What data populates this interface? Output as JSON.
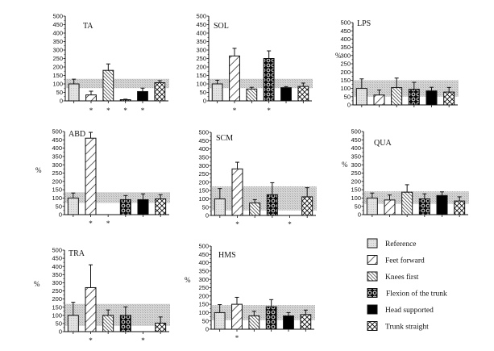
{
  "chart_data": [
    {
      "type": "bar",
      "title": "TA",
      "ylabel": "",
      "ylim": [
        0,
        500
      ],
      "yticks": [
        0,
        50,
        100,
        150,
        200,
        250,
        300,
        350,
        400,
        450,
        500
      ],
      "categories": [
        "Reference",
        "Feet forward",
        "Knees first",
        "Flexion of the trunk",
        "Head supported",
        "Trunk straight"
      ],
      "values": [
        100,
        35,
        180,
        7,
        55,
        107
      ],
      "errors": [
        28,
        22,
        38,
        3,
        20,
        12
      ],
      "band": [
        75,
        130
      ],
      "significant": [
        false,
        true,
        true,
        true,
        true,
        false
      ]
    },
    {
      "type": "bar",
      "title": "SOL",
      "ylabel": "",
      "ylim": [
        0,
        500
      ],
      "yticks": [
        0,
        50,
        100,
        150,
        200,
        250,
        300,
        350,
        400,
        450,
        500
      ],
      "categories": [
        "Reference",
        "Feet forward",
        "Knees first",
        "Flexion of the trunk",
        "Head supported",
        "Trunk straight"
      ],
      "values": [
        100,
        265,
        70,
        250,
        78,
        85
      ],
      "errors": [
        22,
        45,
        10,
        45,
        6,
        20
      ],
      "band": [
        75,
        130
      ],
      "significant": [
        false,
        true,
        false,
        true,
        false,
        false
      ]
    },
    {
      "type": "bar",
      "title": "LPS",
      "ylabel": "%",
      "ylim": [
        0,
        500
      ],
      "yticks": [
        0,
        50,
        100,
        150,
        200,
        250,
        300,
        350,
        400,
        450,
        500
      ],
      "categories": [
        "Reference",
        "Feet forward",
        "Knees first",
        "Flexion of the trunk",
        "Head supported",
        "Trunk straight"
      ],
      "values": [
        100,
        60,
        105,
        95,
        85,
        78
      ],
      "errors": [
        58,
        30,
        58,
        42,
        22,
        28
      ],
      "band": [
        50,
        150
      ],
      "significant": [
        false,
        false,
        false,
        false,
        false,
        false
      ]
    },
    {
      "type": "bar",
      "title": "ABD",
      "ylabel": "%",
      "ylim": [
        0,
        500
      ],
      "yticks": [
        0,
        50,
        100,
        150,
        200,
        250,
        300,
        350,
        400,
        450,
        500
      ],
      "categories": [
        "Reference",
        "Feet forward",
        "Knees first",
        "Flexion of the trunk",
        "Head supported",
        "Trunk straight"
      ],
      "values": [
        100,
        460,
        0,
        90,
        90,
        95
      ],
      "errors": [
        30,
        35,
        0,
        25,
        35,
        25
      ],
      "band": [
        70,
        135
      ],
      "significant": [
        false,
        true,
        true,
        false,
        false,
        false
      ]
    },
    {
      "type": "bar",
      "title": "SCM",
      "ylabel": "%",
      "ylim": [
        0,
        500
      ],
      "yticks": [
        0,
        50,
        100,
        150,
        200,
        250,
        300,
        350,
        400,
        450,
        500
      ],
      "categories": [
        "Reference",
        "Feet forward",
        "Knees first",
        "Flexion of the trunk",
        "Head supported",
        "Trunk straight"
      ],
      "values": [
        100,
        280,
        75,
        125,
        0,
        112
      ],
      "errors": [
        62,
        40,
        20,
        72,
        0,
        55
      ],
      "band": [
        30,
        175
      ],
      "significant": [
        false,
        true,
        false,
        false,
        true,
        false
      ]
    },
    {
      "type": "bar",
      "title": "QUA",
      "ylabel": "%",
      "ylim": [
        0,
        500
      ],
      "yticks": [
        0,
        50,
        100,
        150,
        200,
        250,
        300,
        350,
        400,
        450,
        500
      ],
      "categories": [
        "Reference",
        "Feet forward",
        "Knees first",
        "Flexion of the trunk",
        "Head supported",
        "Trunk straight"
      ],
      "values": [
        100,
        88,
        135,
        95,
        115,
        82
      ],
      "errors": [
        30,
        30,
        45,
        30,
        22,
        25
      ],
      "band": [
        65,
        140
      ],
      "significant": [
        false,
        false,
        false,
        false,
        false,
        false
      ]
    },
    {
      "type": "bar",
      "title": "TRA",
      "ylabel": "%",
      "ylim": [
        0,
        500
      ],
      "yticks": [
        0,
        50,
        100,
        150,
        200,
        250,
        300,
        350,
        400,
        450,
        500
      ],
      "categories": [
        "Reference",
        "Feet forward",
        "Knees first",
        "Flexion of the trunk",
        "Head supported",
        "Trunk straight"
      ],
      "values": [
        100,
        270,
        100,
        100,
        0,
        52
      ],
      "errors": [
        80,
        140,
        33,
        52,
        0,
        38
      ],
      "band": [
        35,
        170
      ],
      "significant": [
        false,
        true,
        false,
        false,
        true,
        false
      ]
    },
    {
      "type": "bar",
      "title": "HMS",
      "ylabel": "%",
      "ylim": [
        0,
        500
      ],
      "yticks": [
        0,
        50,
        100,
        150,
        200,
        250,
        300,
        350,
        400,
        450,
        500
      ],
      "categories": [
        "Reference",
        "Feet forward",
        "Knees first",
        "Flexion of the trunk",
        "Head supported",
        "Trunk straight"
      ],
      "values": [
        100,
        150,
        80,
        135,
        80,
        88
      ],
      "errors": [
        48,
        42,
        28,
        43,
        20,
        27
      ],
      "band": [
        55,
        145
      ],
      "significant": [
        false,
        true,
        false,
        false,
        false,
        false
      ]
    }
  ],
  "legend": {
    "placement": "bottom-right",
    "items": [
      {
        "label": "Reference",
        "pattern": "reference"
      },
      {
        "label": "Feet forward",
        "pattern": "feet-forward"
      },
      {
        "label": "Knees first",
        "pattern": "knees-first"
      },
      {
        "label": "Flexion of the trunk",
        "pattern": "flexion-trunk"
      },
      {
        "label": "Head supported",
        "pattern": "head-supported"
      },
      {
        "label": "Trunk straight",
        "pattern": "trunk-straight"
      }
    ]
  },
  "significance_marker": "*",
  "colors": {
    "band": "#c8c8c8",
    "bar_outline": "#111111",
    "reference_fill": "#d9d9d9",
    "head_supported_fill": "#000000"
  }
}
